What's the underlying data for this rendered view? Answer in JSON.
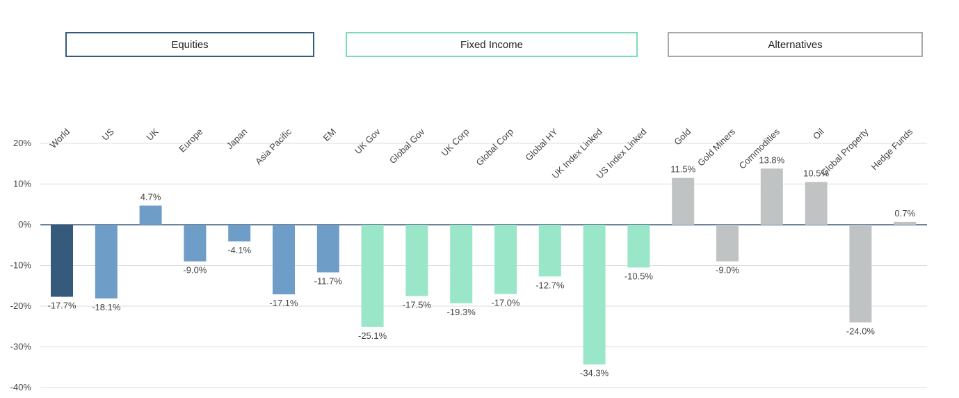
{
  "groups": [
    {
      "label": "Equities",
      "color": "#355a7c"
    },
    {
      "label": "Fixed Income",
      "color": "#7fdbb6"
    },
    {
      "label": "Alternatives",
      "color": "#a7a9ab"
    }
  ],
  "chart_data": {
    "type": "bar",
    "title": "",
    "xlabel": "",
    "ylabel": "",
    "ylim": [
      -40,
      20
    ],
    "yticks": [
      20,
      10,
      0,
      -10,
      -20,
      -30,
      -40
    ],
    "ytick_labels": [
      "20%",
      "10%",
      "0%",
      "-10%",
      "-20%",
      "-30%",
      "-40%"
    ],
    "grid": true,
    "categories": [
      "World",
      "US",
      "UK",
      "Europe",
      "Japan",
      "Asia Pacific",
      "EM",
      "UK Gov",
      "Global Gov",
      "UK Corp",
      "Global Corp",
      "Global HY",
      "UK Index Linked",
      "US Index Linked",
      "Gold",
      "Gold Miners",
      "Commodities",
      "Oil",
      "Global Property",
      "Hedge Funds"
    ],
    "values": [
      -17.7,
      -18.1,
      4.7,
      -9.0,
      -4.1,
      -17.1,
      -11.7,
      -25.1,
      -17.5,
      -19.3,
      -17.0,
      -12.7,
      -34.3,
      -10.5,
      11.5,
      -9.0,
      13.8,
      10.5,
      -24.0,
      0.7
    ],
    "labels": [
      "-17.7%",
      "-18.1%",
      "4.7%",
      "-9.0%",
      "-4.1%",
      "-17.1%",
      "-11.7%",
      "-25.1%",
      "-17.5%",
      "-19.3%",
      "-17.0%",
      "-12.7%",
      "-34.3%",
      "-10.5%",
      "11.5%",
      "-9.0%",
      "13.8%",
      "10.5%",
      "-24.0%",
      "0.7%"
    ],
    "colors": [
      "#355a7c",
      "#6e9dc7",
      "#6e9dc7",
      "#6e9dc7",
      "#6e9dc7",
      "#6e9dc7",
      "#6e9dc7",
      "#9ae6c8",
      "#9ae6c8",
      "#9ae6c8",
      "#9ae6c8",
      "#9ae6c8",
      "#9ae6c8",
      "#9ae6c8",
      "#c0c3c4",
      "#c0c3c4",
      "#c0c3c4",
      "#c0c3c4",
      "#c0c3c4",
      "#c0c3c4"
    ]
  }
}
